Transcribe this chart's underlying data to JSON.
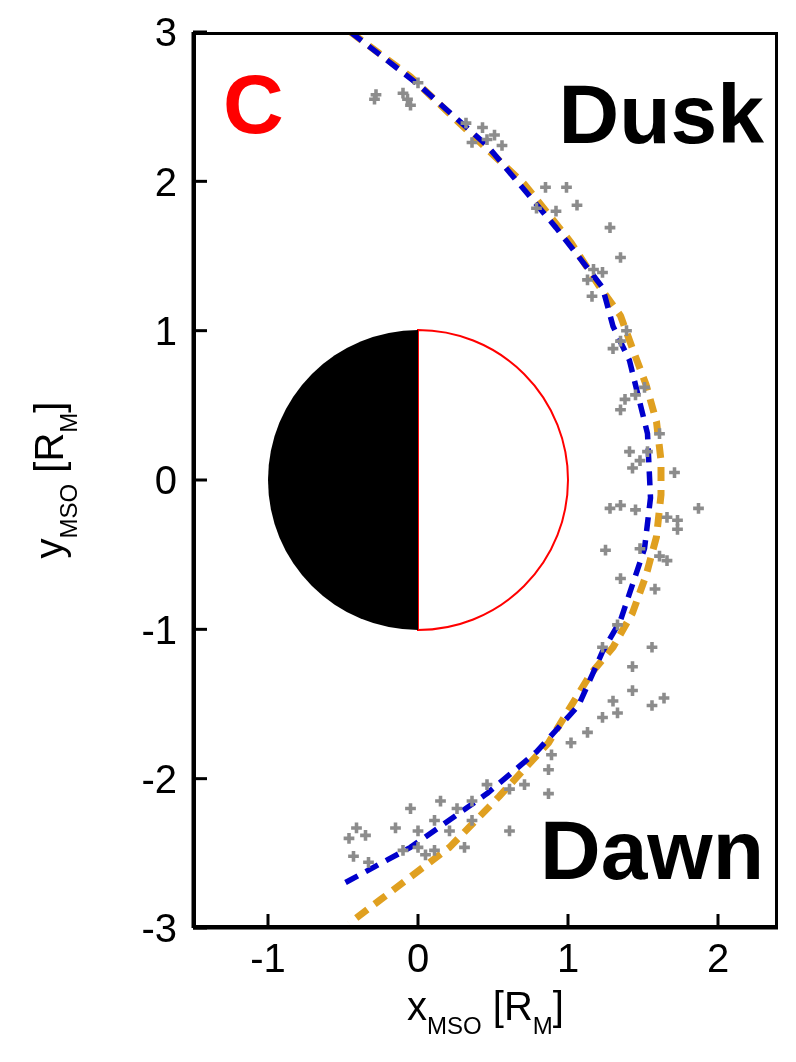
{
  "chart_data": {
    "type": "scatter",
    "xlabel": "x$_{MSO}$  [R$_{M}$]",
    "ylabel": "y$_{MSO}$ [R$_{M}$]",
    "annotations": [
      "C",
      "Dusk",
      "Dawn"
    ],
    "xlim": [
      -1.5,
      2.4
    ],
    "ylim": [
      -3,
      3
    ],
    "xticks": [
      -1,
      0,
      1,
      2
    ],
    "yticks": [
      -3,
      -2,
      -1,
      0,
      1,
      2,
      3
    ],
    "series": [
      {
        "color": "#8c8c8c",
        "marker": "cross",
        "x": [
          -0.28,
          -0.29,
          -0.07,
          -0.05,
          -0.1,
          0.0,
          0.32,
          0.43,
          0.51,
          0.36,
          0.56,
          0.46,
          0.85,
          0.99,
          1.06,
          0.79,
          0.92,
          1.28,
          1.35,
          1.17,
          1.23,
          1.13,
          1.16,
          1.39,
          1.35,
          1.3,
          1.38,
          1.45,
          1.51,
          1.35,
          1.61,
          1.41,
          1.48,
          1.43,
          1.53,
          1.71,
          1.35,
          1.28,
          1.45,
          1.87,
          1.73,
          1.66,
          1.73,
          1.25,
          1.48,
          1.61,
          1.66,
          1.35,
          1.58,
          1.33,
          1.23,
          1.56,
          1.43,
          1.43,
          1.64,
          1.56,
          1.3,
          1.23,
          1.33,
          1.13,
          1.02,
          0.89,
          0.87,
          0.71,
          0.87,
          0.61,
          0.46,
          0.36,
          0.15,
          0.26,
          -0.05,
          0.36,
          0.11,
          -0.15,
          0.0,
          0.21,
          -0.41,
          -0.46,
          -0.35,
          0.0,
          0.11,
          -0.1,
          0.31,
          -0.43,
          -0.33,
          0.05,
          0.61
        ],
        "values": [
          2.58,
          2.55,
          2.55,
          2.51,
          2.59,
          2.66,
          2.39,
          2.36,
          2.31,
          2.26,
          2.24,
          2.28,
          1.96,
          1.96,
          1.84,
          1.82,
          1.8,
          1.69,
          1.49,
          1.41,
          1.39,
          1.34,
          1.23,
          1.0,
          0.93,
          0.88,
          0.54,
          0.57,
          0.62,
          0.47,
          0.31,
          0.19,
          0.13,
          0.08,
          0.19,
          0.05,
          -0.17,
          -0.19,
          -0.2,
          -0.19,
          -0.27,
          -0.25,
          -0.33,
          -0.47,
          -0.46,
          -0.51,
          -0.54,
          -0.66,
          -0.73,
          -0.97,
          -1.12,
          -1.12,
          -1.25,
          -1.41,
          -1.46,
          -1.51,
          -1.48,
          -1.59,
          -1.56,
          -1.69,
          -1.76,
          -1.84,
          -1.94,
          -2.04,
          -2.1,
          -2.07,
          -2.04,
          -2.15,
          -2.15,
          -2.2,
          -2.2,
          -2.28,
          -2.28,
          -2.33,
          -2.35,
          -2.35,
          -2.33,
          -2.4,
          -2.38,
          -2.46,
          -2.48,
          -2.48,
          -2.46,
          -2.52,
          -2.56,
          -2.51,
          -2.35
        ]
      },
      {
        "type": "line",
        "color": "#0000cc",
        "line_style": "dashed",
        "marker": "none",
        "x": [
          -0.45,
          0.0,
          0.46,
          0.92,
          1.23,
          1.3,
          1.41,
          1.53,
          1.55,
          1.51,
          1.35,
          1.23,
          1.07,
          0.79,
          0.46,
          -0.05,
          -0.51
        ],
        "values": [
          3.0,
          2.65,
          2.24,
          1.69,
          1.29,
          1.03,
          0.8,
          0.31,
          -0.12,
          -0.46,
          -0.94,
          -1.15,
          -1.51,
          -1.82,
          -2.1,
          -2.46,
          -2.71
        ]
      },
      {
        "type": "line",
        "color": "#e0a020",
        "line_style": "dashed",
        "marker": "none",
        "x": [
          -0.45,
          -0.05,
          0.33,
          0.71,
          1.02,
          1.2,
          1.35,
          1.43,
          1.52,
          1.59,
          1.62,
          1.62,
          1.59,
          1.52,
          1.43,
          1.3,
          1.15,
          0.87,
          0.54,
          0.21,
          -0.25,
          -0.46
        ],
        "values": [
          3.0,
          2.7,
          2.34,
          1.98,
          1.59,
          1.31,
          1.1,
          0.88,
          0.64,
          0.39,
          0.13,
          -0.1,
          -0.38,
          -0.64,
          -0.89,
          -1.12,
          -1.3,
          -1.76,
          -2.12,
          -2.46,
          -2.81,
          -2.97
        ]
      }
    ]
  }
}
